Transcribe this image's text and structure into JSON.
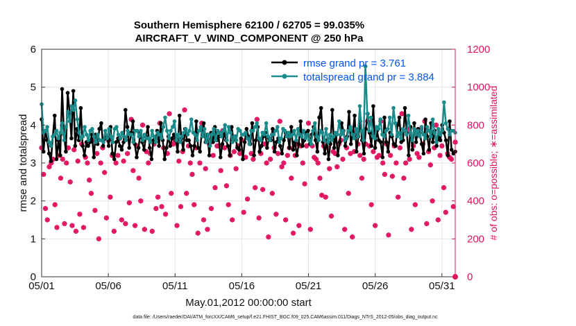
{
  "chart_data": {
    "type": "line",
    "title_line1": "Southern Hemisphere 62100 / 62705 = 99.035%",
    "title_line2": "AIRCRAFT_V_WIND_COMPONENT @ 250 hPa",
    "xlabel": "May.01,2012 00:00:00 start",
    "ylabel_left": "rmse and totalspread",
    "ylabel_right": "# of obs: o=possible; ∗=assimilated",
    "footer": "data file: /Users/raeder/DAI/ATM_forcXX/CAM6_setup/f.e21.FHIST_BGC.f09_025.CAM6assim.011/Diags_NTrS_2012-05/obs_diag_output.nc",
    "x_ticks": [
      {
        "day": 1,
        "label": "05/01"
      },
      {
        "day": 6,
        "label": "05/06"
      },
      {
        "day": 11,
        "label": "05/11"
      },
      {
        "day": 16,
        "label": "05/16"
      },
      {
        "day": 21,
        "label": "05/21"
      },
      {
        "day": 26,
        "label": "05/26"
      },
      {
        "day": 31,
        "label": "05/31"
      }
    ],
    "xlim": [
      1,
      32
    ],
    "ylim_left": [
      0,
      6
    ],
    "yticks_left": [
      "0",
      "1",
      "2",
      "3",
      "4",
      "5",
      "6"
    ],
    "ylim_right": [
      0,
      1200
    ],
    "yticks_right": [
      "0",
      "200",
      "400",
      "600",
      "800",
      "1000",
      "1200"
    ],
    "grid": true,
    "legend_position": "top-right",
    "series": [
      {
        "name": "rmse grand pr = 3.761",
        "color": "#000000",
        "label_color": "#0055ee",
        "axis": "left",
        "values": [
          4.15,
          3.3,
          3.85,
          3.6,
          3.25,
          3.05,
          3.7,
          4.25,
          3.1,
          3.6,
          3.2,
          4.95,
          3.75,
          3.3,
          4.85,
          4.35,
          3.65,
          4.9,
          3.45,
          3.9,
          3.6,
          4.45,
          3.45,
          3.2,
          3.55,
          3.45,
          3.55,
          3.75,
          3.15,
          3.75,
          3.5,
          3.9,
          4.05,
          3.45,
          3.65,
          3.7,
          3.45,
          3.95,
          3.25,
          3.1,
          3.55,
          3.65,
          3.45,
          3.35,
          3.55,
          4.4,
          3.95,
          3.4,
          3.8,
          4.1,
          3.5,
          3.15,
          3.4,
          3.8,
          3.55,
          3.35,
          3.7,
          3.95,
          3.4,
          3.1,
          3.6,
          3.55,
          3.85,
          3.45,
          4.05,
          3.6,
          3.1,
          3.4,
          3.7,
          3.45,
          3.65,
          3.75,
          3.6,
          3.3,
          4.25,
          3.65,
          3.35,
          3.9,
          3.6,
          3.6,
          3.45,
          3.2,
          3.45,
          4.1,
          3.4,
          3.3,
          3.85,
          4.05,
          3.55,
          3.75,
          3.2,
          3.8,
          3.55,
          3.95,
          3.6,
          3.7,
          3.15,
          3.5,
          3.8,
          3.6,
          3.45,
          3.2,
          3.95,
          3.6,
          3.7,
          3.4,
          3.35,
          3.65,
          3.1,
          3.55,
          3.9,
          3.7,
          3.5,
          4.05,
          3.2,
          3.6,
          3.95,
          3.3,
          3.45,
          3.7,
          3.8,
          3.4,
          3.65,
          3.6,
          3.9,
          3.3,
          3.55,
          3.65,
          3.45,
          3.25,
          3.6,
          3.8,
          3.75,
          3.4,
          3.95,
          3.35,
          3.55,
          3.2,
          3.5,
          4.1,
          3.45,
          3.6,
          3.8,
          3.85,
          3.5,
          3.75,
          3.95,
          3.6,
          3.3,
          4.2,
          4.45,
          3.55,
          3.25,
          3.6,
          3.1,
          3.5,
          4.4,
          3.4,
          3.75,
          3.2,
          3.55,
          4.05,
          3.85,
          3.45,
          3.7,
          4.35,
          3.5,
          3.8,
          4.25,
          3.3,
          3.7,
          4.1,
          3.6,
          3.25,
          3.9,
          4.3,
          3.8,
          3.45,
          4.5,
          3.4,
          3.85,
          3.6,
          3.55,
          3.15,
          4.2,
          3.55,
          3.3,
          3.8,
          3.7,
          3.5,
          3.45,
          4.0,
          4.2,
          3.55,
          3.6,
          4.45,
          3.8,
          3.2,
          3.95,
          3.35,
          4.05,
          3.55,
          3.9,
          3.8,
          3.5,
          3.25,
          4.15,
          3.7,
          3.35,
          4.05,
          3.55,
          3.85,
          3.45,
          3.7,
          3.6,
          4.0,
          3.8,
          3.6,
          3.2,
          4.1,
          3.35,
          3.25,
          3.3
        ]
      },
      {
        "name": "totalspread grand pr = 3.884",
        "color": "#1a8a8a",
        "label_color": "#0055ee",
        "axis": "left",
        "values": [
          4.55,
          3.8,
          3.85,
          3.95,
          3.55,
          3.45,
          3.7,
          3.75,
          3.85,
          3.65,
          3.8,
          4.05,
          3.6,
          3.95,
          4.35,
          4.1,
          4.5,
          4.4,
          4.65,
          4.15,
          3.8,
          3.65,
          3.7,
          3.95,
          3.75,
          3.6,
          3.85,
          3.9,
          3.7,
          3.55,
          3.75,
          3.6,
          3.6,
          3.55,
          3.85,
          3.65,
          3.9,
          3.7,
          3.55,
          3.9,
          3.95,
          3.75,
          3.65,
          3.8,
          3.7,
          3.6,
          3.85,
          3.75,
          3.75,
          3.55,
          3.85,
          3.85,
          3.7,
          3.85,
          3.6,
          3.75,
          3.65,
          3.65,
          3.55,
          3.85,
          3.7,
          3.55,
          3.8,
          3.75,
          3.65,
          3.95,
          4.2,
          3.85,
          3.65,
          3.85,
          3.95,
          4.1,
          3.6,
          3.75,
          3.55,
          3.7,
          3.8,
          3.9,
          3.75,
          3.85,
          4.15,
          3.8,
          3.75,
          3.6,
          3.85,
          3.95,
          3.7,
          3.9,
          3.55,
          3.75,
          3.45,
          3.75,
          3.9,
          3.6,
          3.85,
          3.8,
          3.7,
          3.85,
          4.0,
          3.6,
          3.95,
          3.8,
          3.55,
          3.7,
          3.6,
          3.9,
          3.85,
          3.75,
          3.75,
          3.8,
          3.65,
          3.5,
          3.85,
          3.85,
          3.95,
          4.05,
          3.65,
          3.6,
          3.8,
          3.75,
          4.05,
          3.7,
          3.6,
          3.75,
          3.75,
          3.85,
          3.95,
          3.55,
          3.65,
          3.9,
          3.85,
          3.7,
          3.8,
          3.7,
          3.75,
          3.85,
          3.6,
          3.9,
          3.75,
          3.7,
          3.85,
          3.65,
          3.75,
          3.6,
          3.5,
          3.85,
          4.05,
          3.7,
          3.6,
          3.85,
          3.8,
          3.6,
          3.9,
          3.55,
          3.75,
          3.6,
          3.7,
          3.8,
          3.75,
          4.1,
          3.75,
          3.85,
          3.6,
          3.65,
          3.85,
          3.95,
          3.75,
          3.65,
          3.9,
          3.7,
          4.5,
          3.85,
          3.6,
          5.55,
          4.3,
          3.85,
          4.2,
          3.7,
          3.65,
          3.95,
          3.9,
          4.15,
          3.75,
          3.7,
          3.85,
          3.9,
          4.2,
          3.75,
          4.45,
          4.05,
          3.7,
          3.8,
          3.65,
          3.9,
          3.85,
          3.75,
          4.25,
          3.8,
          3.6,
          3.9,
          3.75,
          3.85,
          3.7,
          3.95,
          3.75,
          3.65,
          3.95,
          3.85,
          3.7,
          4.15,
          3.8,
          3.55,
          3.9,
          3.75,
          3.85,
          4.6,
          4.05,
          3.9,
          3.75,
          3.85,
          3.85,
          3.8
        ]
      },
      {
        "name": "obs possible",
        "color": "#e0115f",
        "axis": "right",
        "marker": "o",
        "values": [
          680,
          540,
          360,
          300,
          580,
          600,
          620,
          380,
          260,
          640,
          520,
          620,
          280,
          600,
          680,
          500,
          270,
          670,
          240,
          610,
          330,
          700,
          260,
          630,
          600,
          510,
          440,
          720,
          350,
          650,
          200,
          600,
          680,
          550,
          310,
          720,
          420,
          640,
          240,
          600,
          640,
          730,
          300,
          610,
          280,
          650,
          390,
          830,
          560,
          270,
          690,
          520,
          400,
          800,
          250,
          660,
          600,
          650,
          240,
          700,
          360,
          420,
          810,
          370,
          680,
          330,
          650,
          860,
          440,
          700,
          720,
          270,
          610,
          370,
          660,
          880,
          440,
          690,
          600,
          540,
          380,
          680,
          230,
          600,
          810,
          300,
          570,
          250,
          700,
          360,
          640,
          470,
          690,
          690,
          560,
          770,
          680,
          480,
          380,
          640,
          300,
          660,
          570,
          690,
          650,
          720,
          340,
          630,
          410,
          730,
          650,
          620,
          470,
          830,
          310,
          650,
          460,
          700,
          600,
          210,
          620,
          440,
          680,
          330,
          650,
          820,
          580,
          600,
          300,
          640,
          680,
          520,
          230,
          640,
          700,
          270,
          690,
          600,
          490,
          690,
          810,
          250,
          690,
          630,
          620,
          600,
          520,
          430,
          690,
          420,
          680,
          570,
          320,
          660,
          650,
          580,
          700,
          720,
          620,
          250,
          680,
          440,
          650,
          210,
          660,
          770,
          700,
          640,
          520,
          620,
          700,
          820,
          690,
          380,
          660,
          270,
          630,
          640,
          820,
          600,
          540,
          700,
          220,
          640,
          530,
          690,
          600,
          420,
          680,
          860,
          520,
          600,
          780,
          620,
          250,
          690,
          380,
          650,
          630,
          780,
          700,
          820,
          280,
          660,
          590,
          400,
          680,
          800,
          300,
          640,
          690,
          470,
          340,
          650,
          630,
          620,
          370,
          710
        ]
      },
      {
        "name": "obs assimilated",
        "color": "#e0115f",
        "axis": "right",
        "marker": "*",
        "values": [
          680,
          540,
          360,
          300,
          580,
          600,
          620,
          380,
          260,
          640,
          520,
          620,
          280,
          600,
          680,
          500,
          270,
          670,
          240,
          610,
          330,
          700,
          260,
          630,
          600,
          510,
          440,
          720,
          350,
          650,
          200,
          600,
          680,
          550,
          310,
          720,
          420,
          640,
          240,
          600,
          640,
          730,
          300,
          610,
          280,
          650,
          390,
          830,
          560,
          270,
          690,
          520,
          400,
          800,
          250,
          660,
          600,
          650,
          240,
          700,
          360,
          420,
          810,
          370,
          680,
          330,
          650,
          860,
          440,
          700,
          720,
          270,
          610,
          370,
          660,
          880,
          440,
          690,
          600,
          540,
          380,
          680,
          230,
          600,
          810,
          300,
          570,
          250,
          700,
          360,
          640,
          470,
          690,
          690,
          560,
          770,
          680,
          480,
          380,
          640,
          300,
          660,
          570,
          690,
          650,
          720,
          340,
          630,
          410,
          730,
          650,
          620,
          470,
          830,
          310,
          650,
          460,
          700,
          600,
          210,
          620,
          440,
          680,
          330,
          650,
          820,
          580,
          600,
          300,
          640,
          680,
          520,
          230,
          640,
          700,
          270,
          690,
          600,
          490,
          690,
          810,
          250,
          690,
          630,
          620,
          600,
          520,
          430,
          690,
          420,
          680,
          570,
          320,
          660,
          650,
          580,
          700,
          720,
          620,
          250,
          680,
          440,
          650,
          210,
          660,
          770,
          700,
          640,
          520,
          620,
          700,
          820,
          690,
          380,
          660,
          270,
          630,
          640,
          820,
          600,
          540,
          700,
          220,
          640,
          530,
          690,
          600,
          420,
          680,
          860,
          520,
          600,
          780,
          620,
          250,
          690,
          380,
          650,
          630,
          780,
          700,
          820,
          280,
          660,
          590,
          400,
          680,
          800,
          300,
          640,
          690,
          470,
          340,
          650,
          630,
          620,
          370,
          710
        ]
      }
    ]
  }
}
